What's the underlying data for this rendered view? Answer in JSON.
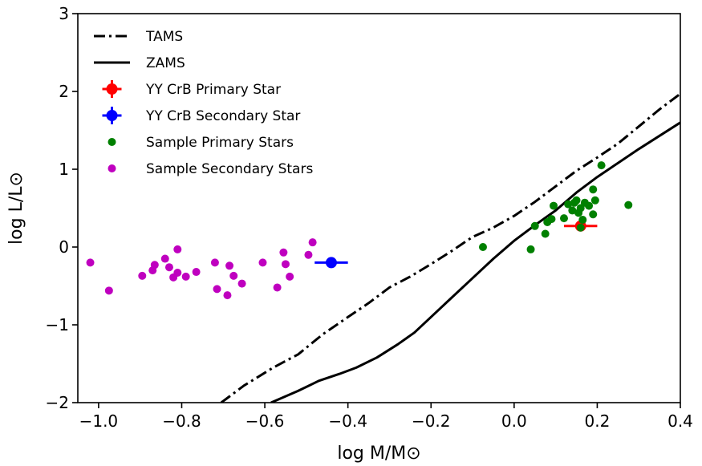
{
  "chart_data": {
    "type": "scatter",
    "title": "",
    "xlabel": "log M/M⊙",
    "ylabel": "log L/L⊙",
    "xlim": [
      -1.05,
      0.4
    ],
    "ylim": [
      -2,
      3
    ],
    "grid": false,
    "legend_position": "top-left",
    "xticks": [
      -1.0,
      -0.8,
      -0.6,
      -0.4,
      -0.2,
      0.0,
      0.2,
      0.4
    ],
    "xtick_labels": [
      "−1.0",
      "−0.8",
      "−0.6",
      "−0.4",
      "−0.2",
      "0.0",
      "0.2",
      "0.4"
    ],
    "yticks": [
      -2,
      -1,
      0,
      1,
      2,
      3
    ],
    "ytick_labels": [
      "−2",
      "−1",
      "0",
      "1",
      "2",
      "3"
    ],
    "lines": [
      {
        "name": "TAMS",
        "style": "dashdot",
        "color": "#000000",
        "x": [
          -0.705,
          -0.65,
          -0.58,
          -0.52,
          -0.46,
          -0.4,
          -0.35,
          -0.3,
          -0.25,
          -0.2,
          -0.15,
          -0.1,
          -0.05,
          0.0,
          0.05,
          0.1,
          0.15,
          0.2,
          0.25,
          0.3,
          0.35,
          0.4
        ],
        "y": [
          -2.0,
          -1.78,
          -1.55,
          -1.38,
          -1.12,
          -0.9,
          -0.72,
          -0.52,
          -0.38,
          -0.22,
          -0.05,
          0.13,
          0.25,
          0.4,
          0.58,
          0.78,
          0.98,
          1.15,
          1.33,
          1.55,
          1.77,
          1.97
        ]
      },
      {
        "name": "ZAMS",
        "style": "solid",
        "color": "#000000",
        "x": [
          -0.585,
          -0.52,
          -0.47,
          -0.42,
          -0.38,
          -0.33,
          -0.28,
          -0.24,
          -0.2,
          -0.15,
          -0.1,
          -0.05,
          0.0,
          0.05,
          0.1,
          0.15,
          0.2,
          0.25,
          0.3,
          0.35,
          0.4
        ],
        "y": [
          -2.0,
          -1.85,
          -1.72,
          -1.63,
          -1.55,
          -1.42,
          -1.25,
          -1.1,
          -0.9,
          -0.65,
          -0.4,
          -0.15,
          0.08,
          0.28,
          0.47,
          0.7,
          0.9,
          1.08,
          1.26,
          1.43,
          1.6
        ]
      }
    ],
    "series": [
      {
        "name": "YY CrB Primary Star",
        "color": "#ff0000",
        "marker": "errorbar",
        "points": [
          {
            "x": 0.16,
            "y": 0.27,
            "xerr": 0.04,
            "yerr": 0.06
          }
        ]
      },
      {
        "name": "YY CrB Secondary Star",
        "color": "#0000ff",
        "marker": "errorbar",
        "points": [
          {
            "x": -0.44,
            "y": -0.2,
            "xerr": 0.04,
            "yerr": 0.05
          }
        ]
      },
      {
        "name": "Sample Primary Stars",
        "color": "#008000",
        "marker": "circle",
        "points": [
          {
            "x": -0.075,
            "y": 0.0
          },
          {
            "x": 0.04,
            "y": -0.03
          },
          {
            "x": 0.05,
            "y": 0.27
          },
          {
            "x": 0.075,
            "y": 0.17
          },
          {
            "x": 0.08,
            "y": 0.32
          },
          {
            "x": 0.09,
            "y": 0.36
          },
          {
            "x": 0.095,
            "y": 0.53
          },
          {
            "x": 0.12,
            "y": 0.37
          },
          {
            "x": 0.13,
            "y": 0.55
          },
          {
            "x": 0.14,
            "y": 0.47
          },
          {
            "x": 0.145,
            "y": 0.57
          },
          {
            "x": 0.15,
            "y": 0.6
          },
          {
            "x": 0.155,
            "y": 0.44
          },
          {
            "x": 0.16,
            "y": 0.5
          },
          {
            "x": 0.16,
            "y": 0.25
          },
          {
            "x": 0.165,
            "y": 0.35
          },
          {
            "x": 0.17,
            "y": 0.57
          },
          {
            "x": 0.18,
            "y": 0.53
          },
          {
            "x": 0.19,
            "y": 0.74
          },
          {
            "x": 0.19,
            "y": 0.42
          },
          {
            "x": 0.195,
            "y": 0.6
          },
          {
            "x": 0.21,
            "y": 1.05
          },
          {
            "x": 0.275,
            "y": 0.54
          }
        ]
      },
      {
        "name": "Sample Secondary Stars",
        "color": "#bf00bf",
        "marker": "circle",
        "points": [
          {
            "x": -1.02,
            "y": -0.2
          },
          {
            "x": -0.975,
            "y": -0.56
          },
          {
            "x": -0.895,
            "y": -0.37
          },
          {
            "x": -0.87,
            "y": -0.3
          },
          {
            "x": -0.865,
            "y": -0.23
          },
          {
            "x": -0.84,
            "y": -0.15
          },
          {
            "x": -0.83,
            "y": -0.26
          },
          {
            "x": -0.82,
            "y": -0.39
          },
          {
            "x": -0.81,
            "y": -0.33
          },
          {
            "x": -0.81,
            "y": -0.03
          },
          {
            "x": -0.79,
            "y": -0.38
          },
          {
            "x": -0.765,
            "y": -0.32
          },
          {
            "x": -0.72,
            "y": -0.2
          },
          {
            "x": -0.715,
            "y": -0.54
          },
          {
            "x": -0.69,
            "y": -0.62
          },
          {
            "x": -0.685,
            "y": -0.24
          },
          {
            "x": -0.675,
            "y": -0.37
          },
          {
            "x": -0.655,
            "y": -0.47
          },
          {
            "x": -0.605,
            "y": -0.2
          },
          {
            "x": -0.57,
            "y": -0.52
          },
          {
            "x": -0.555,
            "y": -0.07
          },
          {
            "x": -0.55,
            "y": -0.22
          },
          {
            "x": -0.54,
            "y": -0.38
          },
          {
            "x": -0.495,
            "y": -0.1
          },
          {
            "x": -0.485,
            "y": 0.06
          }
        ]
      }
    ],
    "legend": [
      {
        "label": "TAMS",
        "kind": "line",
        "style": "dashdot",
        "color": "#000000"
      },
      {
        "label": "ZAMS",
        "kind": "line",
        "style": "solid",
        "color": "#000000"
      },
      {
        "label": "YY CrB Primary Star",
        "kind": "errorbar",
        "color": "#ff0000"
      },
      {
        "label": "YY CrB Secondary Star",
        "kind": "errorbar",
        "color": "#0000ff"
      },
      {
        "label": "Sample Primary Stars",
        "kind": "dot",
        "color": "#008000"
      },
      {
        "label": "Sample Secondary Stars",
        "kind": "dot",
        "color": "#bf00bf"
      }
    ]
  }
}
